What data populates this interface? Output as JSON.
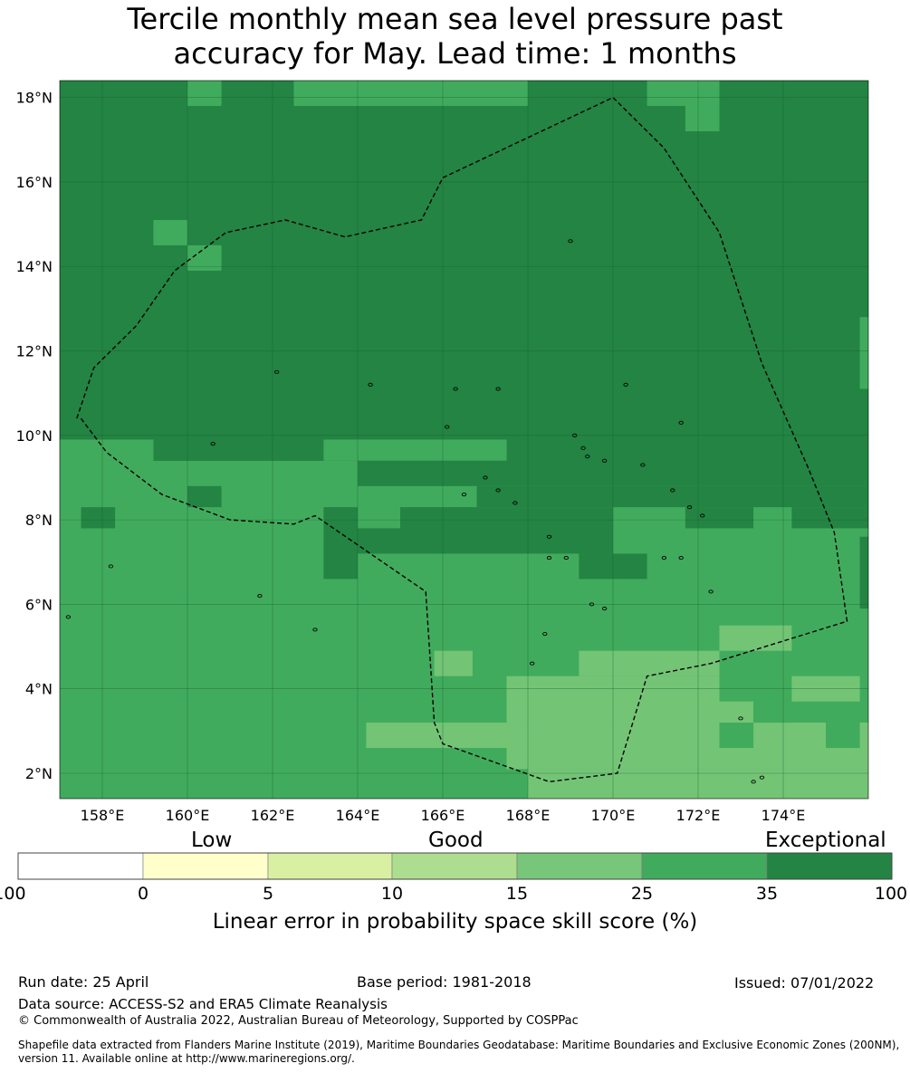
{
  "title_line1": "Tercile monthly mean sea level pressure past",
  "title_line2": "accuracy for May. Lead time: 1 months",
  "map": {
    "lon_range": [
      157,
      176
    ],
    "lat_range": [
      1.4,
      18.4
    ],
    "lat_ticks": [
      "18°N",
      "16°N",
      "14°N",
      "12°N",
      "10°N",
      "8°N",
      "6°N",
      "4°N",
      "2°N"
    ],
    "lon_ticks": [
      "158°E",
      "160°E",
      "162°E",
      "164°E",
      "166°E",
      "168°E",
      "170°E",
      "172°E",
      "174°E"
    ],
    "base_color": "#238443",
    "patches": [
      {
        "lon": [
          160.0,
          160.8
        ],
        "lat": [
          17.8,
          18.4
        ],
        "color": "#41ab5d"
      },
      {
        "lon": [
          162.5,
          168.0
        ],
        "lat": [
          17.8,
          18.4
        ],
        "color": "#41ab5d"
      },
      {
        "lon": [
          170.8,
          172.5
        ],
        "lat": [
          17.8,
          18.4
        ],
        "color": "#41ab5d"
      },
      {
        "lon": [
          171.7,
          172.5
        ],
        "lat": [
          17.2,
          17.8
        ],
        "color": "#41ab5d"
      },
      {
        "lon": [
          159.2,
          160.0
        ],
        "lat": [
          14.5,
          15.1
        ],
        "color": "#41ab5d"
      },
      {
        "lon": [
          160.0,
          160.8
        ],
        "lat": [
          13.9,
          14.5
        ],
        "color": "#41ab5d"
      },
      {
        "lon": [
          175.8,
          176.0
        ],
        "lat": [
          11.1,
          12.8
        ],
        "color": "#41ab5d"
      },
      {
        "lon": [
          157.0,
          176.0
        ],
        "lat": [
          1.4,
          9.4
        ],
        "color": "#41ab5d"
      },
      {
        "lon": [
          157.0,
          159.2
        ],
        "lat": [
          9.4,
          9.9
        ],
        "color": "#41ab5d"
      },
      {
        "lon": [
          163.2,
          167.5
        ],
        "lat": [
          9.4,
          9.9
        ],
        "color": "#41ab5d"
      },
      {
        "lon": [
          163.2,
          164.8
        ],
        "lat": [
          8.8,
          9.4
        ],
        "color": "#41ab5d"
      },
      {
        "lon": [
          160.8,
          166.8
        ],
        "lat": [
          8.3,
          8.8
        ],
        "color": "#41ab5d"
      },
      {
        "lon": [
          172.5,
          175.0
        ],
        "lat": [
          8.8,
          9.4
        ],
        "color": "#41ab5d"
      },
      {
        "lon": [
          159.2,
          176.0
        ],
        "lat": [
          9.4,
          9.9
        ],
        "color": "#238443",
        "note": ""
      },
      {
        "lon": [
          157.0,
          159.2
        ],
        "lat": [
          9.4,
          9.9
        ],
        "color": "#41ab5d"
      },
      {
        "lon": [
          163.2,
          167.5
        ],
        "lat": [
          9.4,
          9.9
        ],
        "color": "#41ab5d"
      },
      {
        "lon": [
          164.0,
          176.0
        ],
        "lat": [
          8.8,
          9.4
        ],
        "color": "#238443"
      },
      {
        "lon": [
          160.0,
          160.8
        ],
        "lat": [
          8.3,
          8.8
        ],
        "color": "#238443"
      },
      {
        "lon": [
          166.8,
          176.0
        ],
        "lat": [
          8.3,
          8.8
        ],
        "color": "#238443"
      },
      {
        "lon": [
          163.2,
          164.0
        ],
        "lat": [
          6.6,
          8.3
        ],
        "color": "#238443"
      },
      {
        "lon": [
          164.0,
          165.0
        ],
        "lat": [
          7.8,
          8.3
        ],
        "color": "#41ab5d"
      },
      {
        "lon": [
          164.0,
          167.5
        ],
        "lat": [
          7.2,
          7.8
        ],
        "color": "#238443"
      },
      {
        "lon": [
          165.0,
          176.0
        ],
        "lat": [
          7.8,
          8.3
        ],
        "color": "#238443"
      },
      {
        "lon": [
          157.5,
          158.3
        ],
        "lat": [
          7.8,
          8.3
        ],
        "color": "#238443"
      },
      {
        "lon": [
          167.5,
          170.0
        ],
        "lat": [
          7.2,
          7.8
        ],
        "color": "#238443"
      },
      {
        "lon": [
          169.2,
          170.8
        ],
        "lat": [
          6.6,
          7.2
        ],
        "color": "#238443"
      },
      {
        "lon": [
          170.0,
          171.7
        ],
        "lat": [
          7.2,
          8.3
        ],
        "color": "#41ab5d"
      },
      {
        "lon": [
          171.7,
          172.5
        ],
        "lat": [
          7.2,
          7.8
        ],
        "color": "#41ab5d"
      },
      {
        "lon": [
          173.3,
          174.2
        ],
        "lat": [
          7.2,
          8.3
        ],
        "color": "#41ab5d"
      },
      {
        "lon": [
          174.2,
          175.8
        ],
        "lat": [
          7.2,
          7.8
        ],
        "color": "#41ab5d"
      },
      {
        "lon": [
          175.8,
          176.0
        ],
        "lat": [
          5.9,
          7.6
        ],
        "color": "#238443"
      },
      {
        "lon": [
          172.5,
          174.2
        ],
        "lat": [
          4.9,
          5.5
        ],
        "color": "#74c476"
      },
      {
        "lon": [
          165.8,
          166.7
        ],
        "lat": [
          4.3,
          4.9
        ],
        "color": "#74c476"
      },
      {
        "lon": [
          169.2,
          172.5
        ],
        "lat": [
          4.3,
          4.9
        ],
        "color": "#74c476"
      },
      {
        "lon": [
          167.5,
          172.5
        ],
        "lat": [
          3.2,
          4.3
        ],
        "color": "#74c476"
      },
      {
        "lon": [
          172.5,
          173.3
        ],
        "lat": [
          2.6,
          3.7
        ],
        "color": "#74c476"
      },
      {
        "lon": [
          174.2,
          175.8
        ],
        "lat": [
          3.7,
          4.3
        ],
        "color": "#74c476"
      },
      {
        "lon": [
          173.3,
          176.0
        ],
        "lat": [
          2.6,
          3.2
        ],
        "color": "#74c476"
      },
      {
        "lon": [
          164.2,
          176.0
        ],
        "lat": [
          2.6,
          3.2
        ],
        "color": "#74c476"
      },
      {
        "lon": [
          167.5,
          176.0
        ],
        "lat": [
          2.1,
          2.6
        ],
        "color": "#74c476"
      },
      {
        "lon": [
          168.0,
          176.0
        ],
        "lat": [
          1.4,
          2.1
        ],
        "color": "#74c476"
      },
      {
        "lon": [
          174.2,
          175.0
        ],
        "lat": [
          2.6,
          3.2
        ],
        "color": "#74c476"
      },
      {
        "lon": [
          172.5,
          173.3
        ],
        "lat": [
          2.6,
          3.2
        ],
        "color": "#41ab5d"
      },
      {
        "lon": [
          173.3,
          174.2
        ],
        "lat": [
          3.2,
          3.7
        ],
        "color": "#41ab5d"
      },
      {
        "lon": [
          175.0,
          175.8
        ],
        "lat": [
          2.6,
          3.2
        ],
        "color": "#41ab5d"
      }
    ],
    "boundary": [
      [
        157.5,
        10.4
      ],
      [
        158.1,
        9.6
      ],
      [
        159.4,
        8.6
      ],
      [
        161.0,
        8.0
      ],
      [
        162.5,
        7.9
      ],
      [
        163.0,
        8.1
      ],
      [
        165.6,
        6.3
      ],
      [
        165.8,
        3.2
      ],
      [
        166.0,
        2.7
      ],
      [
        168.5,
        1.8
      ],
      [
        170.1,
        2.0
      ],
      [
        170.8,
        4.3
      ],
      [
        172.3,
        4.6
      ],
      [
        175.5,
        5.6
      ],
      [
        175.2,
        7.7
      ],
      [
        174.6,
        9.2
      ],
      [
        173.5,
        11.7
      ],
      [
        172.5,
        14.8
      ],
      [
        171.2,
        16.8
      ],
      [
        170.0,
        18.0
      ],
      [
        166.0,
        16.1
      ],
      [
        165.5,
        15.1
      ],
      [
        163.7,
        14.7
      ],
      [
        162.3,
        15.1
      ],
      [
        160.9,
        14.8
      ],
      [
        159.7,
        13.9
      ],
      [
        158.8,
        12.6
      ],
      [
        157.8,
        11.6
      ],
      [
        157.4,
        10.4
      ]
    ],
    "islands": [
      [
        158.2,
        6.9
      ],
      [
        157.2,
        5.7
      ],
      [
        161.7,
        6.2
      ],
      [
        163.0,
        5.4
      ],
      [
        162.1,
        11.5
      ],
      [
        164.3,
        11.2
      ],
      [
        166.3,
        11.1
      ],
      [
        167.3,
        11.1
      ],
      [
        169.0,
        14.6
      ],
      [
        170.3,
        11.2
      ],
      [
        171.6,
        10.3
      ],
      [
        166.1,
        10.2
      ],
      [
        169.1,
        10.0
      ],
      [
        169.3,
        9.7
      ],
      [
        169.4,
        9.5
      ],
      [
        169.8,
        9.4
      ],
      [
        170.7,
        9.3
      ],
      [
        171.4,
        8.7
      ],
      [
        171.8,
        8.3
      ],
      [
        172.1,
        8.1
      ],
      [
        171.2,
        7.1
      ],
      [
        171.6,
        7.1
      ],
      [
        172.3,
        6.3
      ],
      [
        173.0,
        3.3
      ],
      [
        173.3,
        1.8
      ],
      [
        173.5,
        1.9
      ],
      [
        166.5,
        8.6
      ],
      [
        167.3,
        8.7
      ],
      [
        167.0,
        9.0
      ],
      [
        167.7,
        8.4
      ],
      [
        168.5,
        7.6
      ],
      [
        168.5,
        7.1
      ],
      [
        168.9,
        7.1
      ],
      [
        169.5,
        6.0
      ],
      [
        169.8,
        5.9
      ],
      [
        168.4,
        5.3
      ],
      [
        168.1,
        4.6
      ],
      [
        160.6,
        9.8
      ]
    ]
  },
  "colorbar": {
    "words": [
      "Low",
      "Good",
      "Exceptional"
    ],
    "ticks": [
      "-100",
      "0",
      "5",
      "10",
      "15",
      "25",
      "35",
      "100"
    ],
    "colors": [
      "#ffffff",
      "#ffffcc",
      "#d9f0a3",
      "#addd8e",
      "#78c679",
      "#41ab5d",
      "#238443"
    ],
    "label": "Linear error in probability space skill score (%)"
  },
  "footer": {
    "run_date": "Run date: 25 April",
    "base_period": "Base period: 1981-2018",
    "issued": "Issued: 07/01/2022",
    "data_source": "Data source: ACCESS-S2 and ERA5 Climate Reanalysis",
    "copyright": "© Commonwealth of Australia 2022, Australian Bureau of Meteorology, Supported by COSPPac",
    "shapefile_1": "Shapefile data extracted from Flanders Marine Institute (2019), Maritime Boundaries Geodatabase: Maritime Boundaries and Exclusive Economic Zones (200NM),",
    "shapefile_2": "version 11. Available online at http://www.marineregions.org/."
  }
}
